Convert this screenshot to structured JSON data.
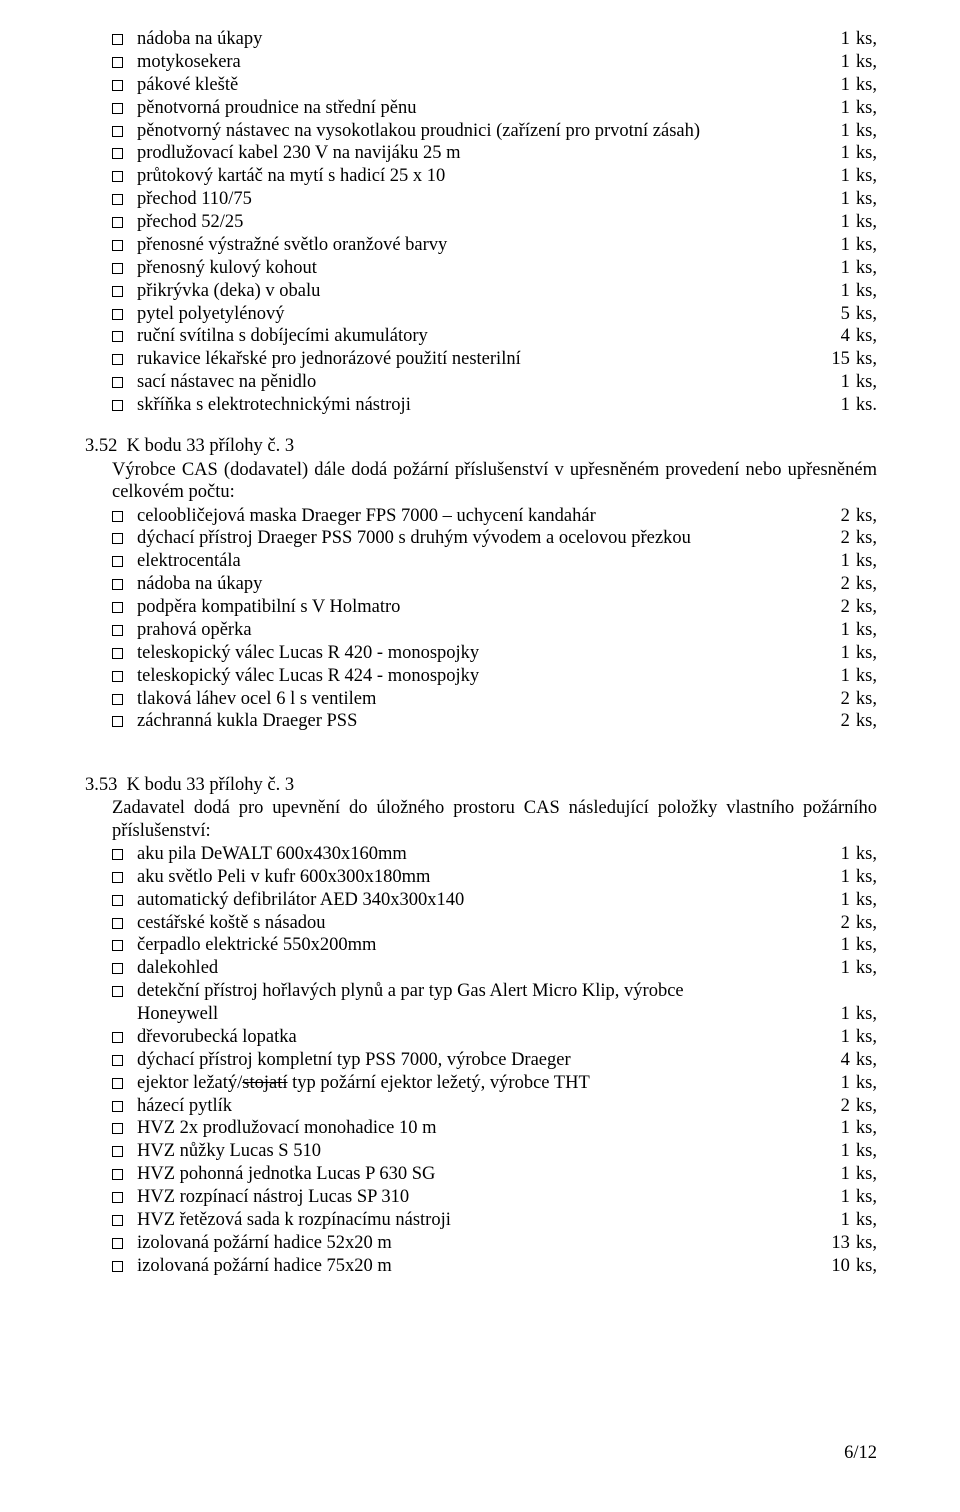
{
  "list1": [
    {
      "label": "nádoba na úkapy",
      "num": "1",
      "unit": "ks,"
    },
    {
      "label": "motykosekera",
      "num": "1",
      "unit": "ks,"
    },
    {
      "label": "pákové kleště",
      "num": "1",
      "unit": "ks,"
    },
    {
      "label": "pěnotvorná proudnice na střední pěnu",
      "num": "1",
      "unit": "ks,"
    },
    {
      "label": "pěnotvorný nástavec na vysokotlakou proudnici (zařízení pro prvotní zásah)",
      "num": "1",
      "unit": "ks,"
    },
    {
      "label": "prodlužovací kabel 230 V na navijáku 25 m",
      "num": "1",
      "unit": "ks,"
    },
    {
      "label": "průtokový kartáč na mytí s hadicí 25 x 10",
      "num": "1",
      "unit": "ks,"
    },
    {
      "label": "přechod 110/75",
      "num": "1",
      "unit": "ks,"
    },
    {
      "label": "přechod 52/25",
      "num": "1",
      "unit": "ks,"
    },
    {
      "label": "přenosné výstražné světlo oranžové barvy",
      "num": "1",
      "unit": "ks,"
    },
    {
      "label": "přenosný kulový kohout",
      "num": "1",
      "unit": "ks,"
    },
    {
      "label": "přikrývka (deka) v obalu",
      "num": "1",
      "unit": "ks,"
    },
    {
      "label": "pytel polyetylénový",
      "num": "5",
      "unit": "ks,"
    },
    {
      "label": "ruční svítilna s dobíjecími akumulátory",
      "num": "4",
      "unit": "ks,"
    },
    {
      "label": "rukavice lékařské pro jednorázové použití nesterilní",
      "num": "15",
      "unit": "ks,"
    },
    {
      "label": "sací nástavec na pěnidlo",
      "num": "1",
      "unit": "ks,"
    },
    {
      "label": "skříňka s elektrotechnickými nástroji",
      "num": "1",
      "unit": "ks."
    }
  ],
  "section2": {
    "head": "3.52  K bodu 33 přílohy č. 3",
    "body": "Výrobce CAS (dodavatel) dále dodá požární příslušenství v upřesněném provedení nebo upřesněném celkovém počtu:"
  },
  "list2": [
    {
      "label": "celoobličejová maska Draeger FPS 7000 – uchycení kandahár",
      "num": "2",
      "unit": "ks,"
    },
    {
      "label": "dýchací přístroj Draeger PSS 7000 s druhým vývodem a ocelovou přezkou",
      "num": "2",
      "unit": "ks,"
    },
    {
      "label": "elektrocentála",
      "num": "1",
      "unit": "ks,"
    },
    {
      "label": "nádoba na úkapy",
      "num": "2",
      "unit": "ks,"
    },
    {
      "label": "podpěra kompatibilní s V Holmatro",
      "num": "2",
      "unit": "ks,"
    },
    {
      "label": "prahová opěrka",
      "num": "1",
      "unit": "ks,"
    },
    {
      "label": "teleskopický válec Lucas R 420 - monospojky",
      "num": "1",
      "unit": "ks,"
    },
    {
      "label": "teleskopický válec Lucas R 424 - monospojky",
      "num": "1",
      "unit": "ks,"
    },
    {
      "label": "tlaková láhev ocel 6 l s ventilem",
      "num": "2",
      "unit": "ks,"
    },
    {
      "label": "záchranná kukla Draeger PSS",
      "num": "2",
      "unit": "ks,"
    }
  ],
  "section3": {
    "head": "3.53  K bodu 33 přílohy č. 3",
    "body": "Zadavatel dodá pro upevnění do úložného prostoru CAS následující položky vlastního požárního příslušenství:"
  },
  "list3": [
    {
      "label": "aku pila DeWALT 600x430x160mm",
      "num": "1",
      "unit": "ks,"
    },
    {
      "label": "aku světlo Peli v kufr 600x300x180mm",
      "num": "1",
      "unit": "ks,"
    },
    {
      "label": "automatický defibrilátor AED 340x300x140",
      "num": "1",
      "unit": "ks,"
    },
    {
      "label": "cestářské koště s násadou",
      "num": "2",
      "unit": "ks,"
    },
    {
      "label": "čerpadlo elektrické 550x200mm",
      "num": "1",
      "unit": "ks,"
    },
    {
      "label": "dalekohled",
      "num": "1",
      "unit": "ks,"
    }
  ],
  "list3_special": {
    "label_a": "detekční přístroj hořlavých plynů a par typ Gas Alert Micro Klip, výrobce",
    "label_b": "Honeywell",
    "num": "1",
    "unit": "ks,"
  },
  "list3b": [
    {
      "label": "dřevorubecká lopatka",
      "num": "1",
      "unit": "ks,"
    },
    {
      "label": "dýchací přístroj kompletní typ PSS 7000, výrobce Draeger",
      "num": "4",
      "unit": "ks,"
    }
  ],
  "list3_strike": {
    "pre": "ejektor ležatý/",
    "strike": "stojatí",
    "post": " typ požární ejektor ležetý, výrobce THT",
    "num": "1",
    "unit": "ks,"
  },
  "list3c": [
    {
      "label": "házecí pytlík",
      "num": "2",
      "unit": "ks,"
    },
    {
      "label": "HVZ 2x prodlužovací monohadice 10 m",
      "num": "1",
      "unit": "ks,"
    },
    {
      "label": "HVZ nůžky Lucas S 510",
      "num": "1",
      "unit": "ks,"
    },
    {
      "label": "HVZ pohonná jednotka Lucas P 630 SG",
      "num": "1",
      "unit": "ks,"
    },
    {
      "label": "HVZ rozpínací nástroj Lucas SP 310",
      "num": "1",
      "unit": "ks,"
    },
    {
      "label": "HVZ řetězová sada k rozpínacímu nástroji",
      "num": "1",
      "unit": "ks,"
    },
    {
      "label": "izolovaná požární hadice 52x20 m",
      "num": "13",
      "unit": "ks,"
    },
    {
      "label": "izolovaná požární hadice 75x20 m",
      "num": "10",
      "unit": "ks,"
    }
  ],
  "footer": "6/12"
}
